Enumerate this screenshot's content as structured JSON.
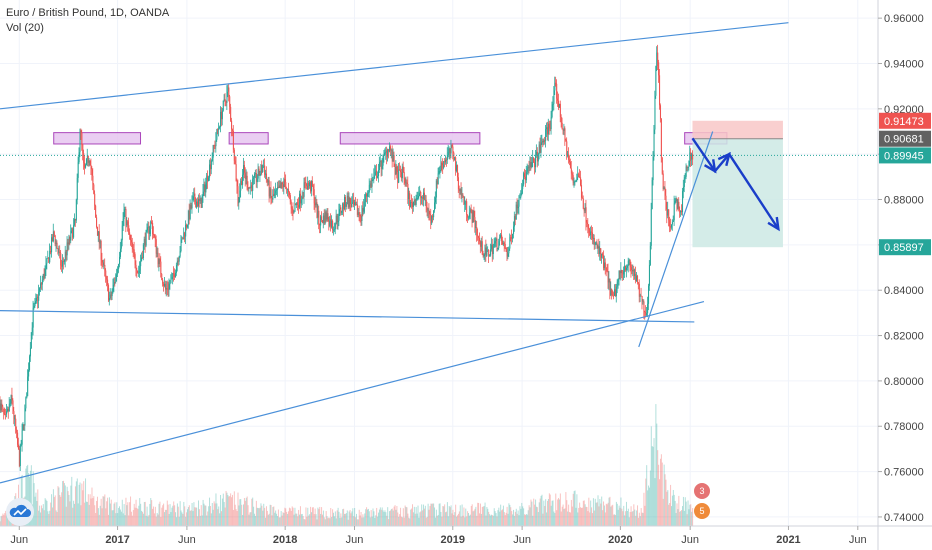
{
  "header": {
    "title": "Euro / British Pound, 1D, OANDA",
    "indicator": "Vol (20)"
  },
  "colors": {
    "up": "#26a69a",
    "down": "#ef5350",
    "trendline": "#4a90d9",
    "zone_fill": "#e7c6f0",
    "zone_stroke": "#9c27b0",
    "arrow": "#1a3ec9",
    "stop_zone": "#f8c7c7",
    "target_zone": "#cde9e4",
    "axis_text": "#444444",
    "grid": "#f0f3fa"
  },
  "chart_data": {
    "type": "candlestick",
    "title": "Euro / British Pound, 1D, OANDA",
    "symbol": "EUR/GBP",
    "timeframe": "1D",
    "ylim": [
      0.736,
      0.968
    ],
    "xlim": [
      "2016-04-20",
      "2021-07-15"
    ],
    "y_ticks": [
      "0.74000",
      "0.76000",
      "0.78000",
      "0.80000",
      "0.82000",
      "0.84000",
      "0.86000",
      "0.88000",
      "0.90000",
      "0.92000",
      "0.94000",
      "0.96000"
    ],
    "x_ticks": [
      {
        "label": "Jun",
        "date": "2016-06-01"
      },
      {
        "label": "2017",
        "date": "2017-01-01"
      },
      {
        "label": "Jun",
        "date": "2017-06-01"
      },
      {
        "label": "2018",
        "date": "2018-01-01"
      },
      {
        "label": "Jun",
        "date": "2018-06-01"
      },
      {
        "label": "2019",
        "date": "2019-01-01"
      },
      {
        "label": "Jun",
        "date": "2019-06-01"
      },
      {
        "label": "2020",
        "date": "2020-01-01"
      },
      {
        "label": "Jun",
        "date": "2020-06-01"
      },
      {
        "label": "2021",
        "date": "2021-01-01"
      },
      {
        "label": "Jun",
        "date": "2021-06-01"
      }
    ],
    "price_path": [
      [
        "2016-04-20",
        0.79
      ],
      [
        "2016-05-01",
        0.782
      ],
      [
        "2016-05-15",
        0.792
      ],
      [
        "2016-06-01",
        0.765
      ],
      [
        "2016-06-15",
        0.79
      ],
      [
        "2016-06-24",
        0.815
      ],
      [
        "2016-07-01",
        0.83
      ],
      [
        "2016-07-15",
        0.84
      ],
      [
        "2016-08-01",
        0.852
      ],
      [
        "2016-08-15",
        0.865
      ],
      [
        "2016-09-01",
        0.85
      ],
      [
        "2016-09-15",
        0.86
      ],
      [
        "2016-10-01",
        0.87
      ],
      [
        "2016-10-11",
        0.912
      ],
      [
        "2016-10-20",
        0.892
      ],
      [
        "2016-11-01",
        0.9
      ],
      [
        "2016-11-15",
        0.87
      ],
      [
        "2016-12-01",
        0.85
      ],
      [
        "2016-12-15",
        0.835
      ],
      [
        "2017-01-01",
        0.85
      ],
      [
        "2017-01-15",
        0.875
      ],
      [
        "2017-02-01",
        0.858
      ],
      [
        "2017-02-15",
        0.848
      ],
      [
        "2017-03-01",
        0.862
      ],
      [
        "2017-03-15",
        0.87
      ],
      [
        "2017-04-01",
        0.852
      ],
      [
        "2017-04-15",
        0.84
      ],
      [
        "2017-05-01",
        0.845
      ],
      [
        "2017-05-15",
        0.857
      ],
      [
        "2017-06-01",
        0.87
      ],
      [
        "2017-06-15",
        0.88
      ],
      [
        "2017-07-01",
        0.878
      ],
      [
        "2017-07-15",
        0.89
      ],
      [
        "2017-08-01",
        0.905
      ],
      [
        "2017-08-15",
        0.918
      ],
      [
        "2017-08-29",
        0.928
      ],
      [
        "2017-09-10",
        0.905
      ],
      [
        "2017-09-20",
        0.88
      ],
      [
        "2017-10-01",
        0.893
      ],
      [
        "2017-10-15",
        0.885
      ],
      [
        "2017-11-01",
        0.89
      ],
      [
        "2017-11-15",
        0.895
      ],
      [
        "2017-12-01",
        0.88
      ],
      [
        "2017-12-15",
        0.883
      ],
      [
        "2018-01-01",
        0.888
      ],
      [
        "2018-01-15",
        0.875
      ],
      [
        "2018-02-01",
        0.88
      ],
      [
        "2018-02-15",
        0.887
      ],
      [
        "2018-03-01",
        0.885
      ],
      [
        "2018-03-15",
        0.87
      ],
      [
        "2018-04-01",
        0.873
      ],
      [
        "2018-04-15",
        0.868
      ],
      [
        "2018-05-01",
        0.875
      ],
      [
        "2018-05-15",
        0.88
      ],
      [
        "2018-06-01",
        0.876
      ],
      [
        "2018-06-15",
        0.873
      ],
      [
        "2018-07-01",
        0.885
      ],
      [
        "2018-07-15",
        0.89
      ],
      [
        "2018-08-01",
        0.897
      ],
      [
        "2018-08-15",
        0.904
      ],
      [
        "2018-09-01",
        0.89
      ],
      [
        "2018-09-15",
        0.892
      ],
      [
        "2018-10-01",
        0.877
      ],
      [
        "2018-10-15",
        0.882
      ],
      [
        "2018-11-01",
        0.88
      ],
      [
        "2018-11-15",
        0.87
      ],
      [
        "2018-12-01",
        0.893
      ],
      [
        "2018-12-15",
        0.898
      ],
      [
        "2019-01-01",
        0.902
      ],
      [
        "2019-01-15",
        0.885
      ],
      [
        "2019-02-01",
        0.875
      ],
      [
        "2019-02-15",
        0.872
      ],
      [
        "2019-03-01",
        0.86
      ],
      [
        "2019-03-15",
        0.855
      ],
      [
        "2019-04-01",
        0.86
      ],
      [
        "2019-04-15",
        0.862
      ],
      [
        "2019-05-01",
        0.856
      ],
      [
        "2019-05-15",
        0.872
      ],
      [
        "2019-06-01",
        0.888
      ],
      [
        "2019-06-15",
        0.893
      ],
      [
        "2019-07-01",
        0.898
      ],
      [
        "2019-07-15",
        0.905
      ],
      [
        "2019-08-01",
        0.914
      ],
      [
        "2019-08-12",
        0.93
      ],
      [
        "2019-08-25",
        0.915
      ],
      [
        "2019-09-05",
        0.903
      ],
      [
        "2019-09-20",
        0.887
      ],
      [
        "2019-10-01",
        0.892
      ],
      [
        "2019-10-15",
        0.875
      ],
      [
        "2019-11-01",
        0.862
      ],
      [
        "2019-11-15",
        0.857
      ],
      [
        "2019-12-01",
        0.848
      ],
      [
        "2019-12-15",
        0.835
      ],
      [
        "2020-01-01",
        0.848
      ],
      [
        "2020-01-15",
        0.852
      ],
      [
        "2020-02-01",
        0.847
      ],
      [
        "2020-02-15",
        0.835
      ],
      [
        "2020-02-28",
        0.83
      ],
      [
        "2020-03-06",
        0.862
      ],
      [
        "2020-03-12",
        0.9
      ],
      [
        "2020-03-19",
        0.948
      ],
      [
        "2020-03-25",
        0.93
      ],
      [
        "2020-04-01",
        0.89
      ],
      [
        "2020-04-10",
        0.875
      ],
      [
        "2020-04-20",
        0.868
      ],
      [
        "2020-05-01",
        0.88
      ],
      [
        "2020-05-10",
        0.872
      ],
      [
        "2020-05-20",
        0.89
      ],
      [
        "2020-06-01",
        0.9
      ],
      [
        "2020-06-06",
        0.899
      ]
    ],
    "volume_path": [
      [
        "2016-04-20",
        12
      ],
      [
        "2016-06-24",
        85
      ],
      [
        "2016-07-15",
        35
      ],
      [
        "2016-10-11",
        70
      ],
      [
        "2016-11-15",
        40
      ],
      [
        "2017-06-01",
        30
      ],
      [
        "2017-08-29",
        45
      ],
      [
        "2017-12-15",
        25
      ],
      [
        "2018-06-01",
        22
      ],
      [
        "2018-12-15",
        30
      ],
      [
        "2019-06-01",
        28
      ],
      [
        "2019-08-12",
        45
      ],
      [
        "2019-12-15",
        40
      ],
      [
        "2020-02-15",
        25
      ],
      [
        "2020-03-19",
        170
      ],
      [
        "2020-04-10",
        55
      ],
      [
        "2020-06-06",
        30
      ]
    ],
    "drawings": {
      "trendlines": [
        {
          "from": [
            "2016-04-20",
            0.92
          ],
          "to": [
            "2021-01-01",
            0.958
          ]
        },
        {
          "from": [
            "2016-04-20",
            0.831
          ],
          "to": [
            "2020-06-10",
            0.826
          ]
        },
        {
          "from": [
            "2016-04-20",
            0.755
          ],
          "to": [
            "2020-07-01",
            0.835
          ]
        },
        {
          "from": [
            "2020-02-10",
            0.815
          ],
          "to": [
            "2020-07-20",
            0.91
          ]
        }
      ],
      "resistance_zones": [
        {
          "from": "2016-08-15",
          "to": "2017-02-20",
          "top": 0.9095,
          "bottom": 0.9045
        },
        {
          "from": "2017-09-01",
          "to": "2017-11-25",
          "top": 0.9095,
          "bottom": 0.9045
        },
        {
          "from": "2018-05-01",
          "to": "2019-03-01",
          "top": 0.9095,
          "bottom": 0.9045
        },
        {
          "from": "2020-05-20",
          "to": "2020-08-20",
          "top": 0.9095,
          "bottom": 0.9045
        }
      ],
      "risk_reward": {
        "from": "2020-06-06",
        "to": "2020-12-20",
        "stop": 0.91473,
        "entry": 0.90681,
        "target": 0.85897
      },
      "projected_path": [
        [
          "2020-06-06",
          0.907
        ],
        [
          "2020-07-25",
          0.8925
        ],
        [
          "2020-08-25",
          0.9
        ],
        [
          "2020-12-10",
          0.867
        ]
      ]
    },
    "price_labels": [
      {
        "value": 0.91473,
        "text": "0.91473",
        "kind": "stop"
      },
      {
        "value": 0.90681,
        "text": "0.90681",
        "kind": "entry"
      },
      {
        "value": 0.89945,
        "text": "0.89945",
        "kind": "last"
      },
      {
        "value": 0.85897,
        "text": "0.85897",
        "kind": "target"
      }
    ],
    "ideas_badges": [
      {
        "count": "3"
      },
      {
        "count": "5"
      }
    ]
  }
}
